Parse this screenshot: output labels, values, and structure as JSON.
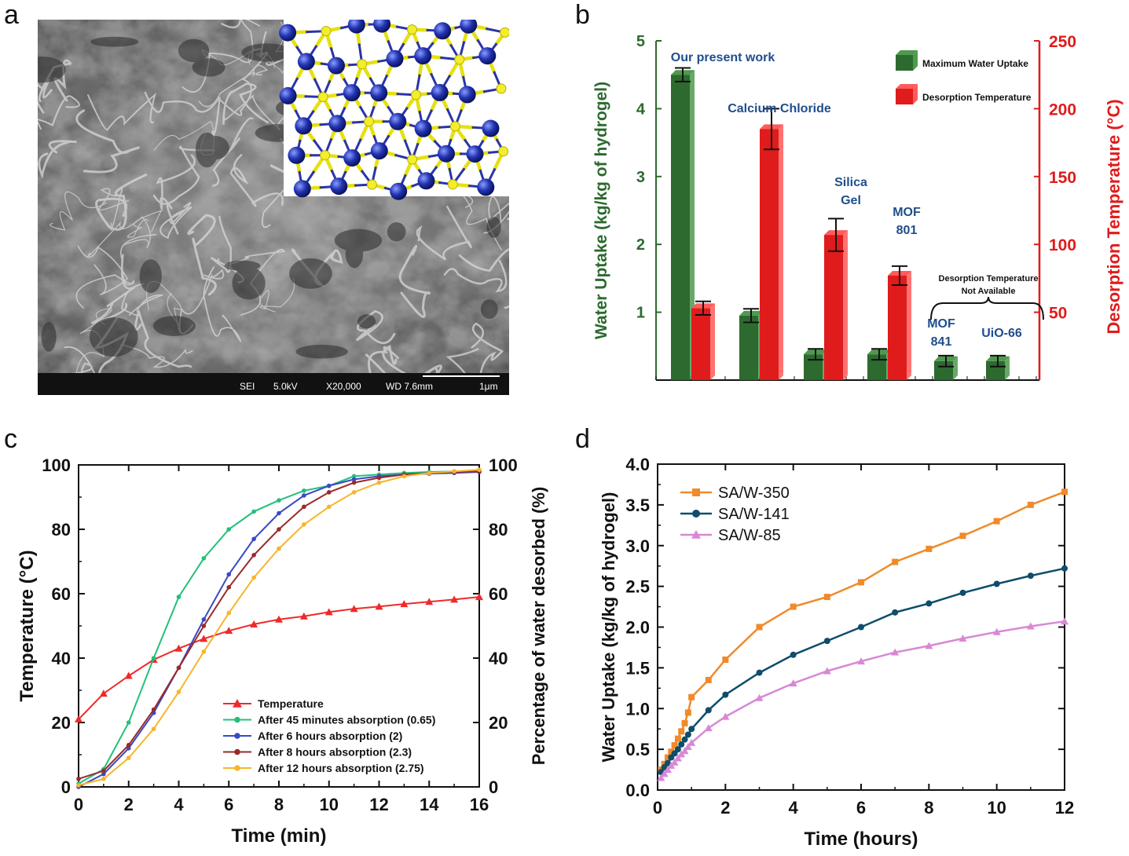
{
  "panels": {
    "a": "a",
    "b": "b",
    "c": "c",
    "d": "d"
  },
  "sem": {
    "scale_bar": "1μm",
    "info": [
      "SEI",
      "5.0kV",
      "X20,000",
      "WD 7.6mm"
    ]
  },
  "chart_data": [
    {
      "type": "bar",
      "panel": "b",
      "categories": [
        "Our present work",
        "Calcium Chloride",
        "Silica Gel",
        "MOF 801",
        "MOF 841",
        "UiO-66"
      ],
      "category_labels": [
        [
          "Our present work"
        ],
        [
          "Calcium Chloride"
        ],
        [
          "Silica",
          "Gel"
        ],
        [
          "MOF",
          "801"
        ],
        [
          "MOF",
          "841"
        ],
        [
          "UiO-66"
        ]
      ],
      "series": [
        {
          "name": "Maximum Water Uptake",
          "axis": "left",
          "color": "#2d6a2f",
          "values": [
            4.5,
            0.95,
            0.38,
            0.38,
            0.28,
            0.28
          ],
          "errors": [
            0.1,
            0.1,
            0.08,
            0.08,
            0.08,
            0.08
          ]
        },
        {
          "name": "Desorption Temperature",
          "axis": "right",
          "color": "#e01b1b",
          "values": [
            53,
            185,
            107,
            77,
            null,
            null
          ],
          "errors": [
            5,
            15,
            12,
            7,
            null,
            null
          ]
        }
      ],
      "ylabel": "Water Uptake (kg/kg of hydrogel)",
      "y2label": "Desorption Temperature (°C)",
      "ylim": [
        0,
        5
      ],
      "y2lim": [
        0,
        250
      ],
      "yticks": [
        1,
        2,
        3,
        4,
        5
      ],
      "y2ticks": [
        50,
        100,
        150,
        200,
        250
      ],
      "annotation": [
        "Desorption Temperature",
        "Not Available"
      ],
      "legend_position": "top-right",
      "colors": {
        "left_axis": "#2d6a2f",
        "right_axis": "#e01b1b",
        "label": "#1f4e8c"
      }
    },
    {
      "type": "line",
      "panel": "c",
      "xlabel": "Time (min)",
      "ylabel": "Temperature (°C)",
      "y2label": "Percentage of water desorbed (%)",
      "xlim": [
        0,
        16
      ],
      "ylim": [
        0,
        100
      ],
      "y2lim": [
        0,
        100
      ],
      "xticks": [
        0,
        2,
        4,
        6,
        8,
        10,
        12,
        14,
        16
      ],
      "yticks": [
        0,
        20,
        40,
        60,
        80,
        100
      ],
      "legend_position": "bottom-right",
      "series": [
        {
          "name": "Temperature",
          "color": "#ee2a2a",
          "marker": "triangle",
          "x": [
            0,
            1,
            2,
            3,
            4,
            5,
            6,
            7,
            8,
            9,
            10,
            11,
            12,
            13,
            14,
            15,
            16
          ],
          "y": [
            21,
            29,
            34.5,
            39.5,
            43,
            46,
            48.5,
            50.5,
            52,
            53,
            54.3,
            55.3,
            56,
            56.8,
            57.5,
            58.2,
            59
          ]
        },
        {
          "name": "After 45 minutes absorption (0.65)",
          "color": "#22c07a",
          "marker": "circle",
          "x": [
            0,
            1,
            2,
            3,
            4,
            5,
            6,
            7,
            8,
            9,
            10,
            11,
            12,
            13,
            14,
            15,
            16
          ],
          "y": [
            1,
            5.5,
            20,
            40,
            59,
            71,
            80,
            85.5,
            89,
            92,
            93.5,
            96.5,
            97,
            97.5,
            97.8,
            98,
            98.2
          ]
        },
        {
          "name": "After 6 hours absorption (2)",
          "color": "#3a49c4",
          "marker": "circle",
          "x": [
            0,
            1,
            2,
            3,
            4,
            5,
            6,
            7,
            8,
            9,
            10,
            11,
            12,
            13,
            14,
            15,
            16
          ],
          "y": [
            0,
            4,
            12,
            23,
            37,
            52,
            66,
            77,
            85,
            90.5,
            93.5,
            95.5,
            96.5,
            97,
            97.3,
            97.5,
            97.8
          ]
        },
        {
          "name": "After 8 hours absorption (2.3)",
          "color": "#9a2a2a",
          "marker": "circle",
          "x": [
            0,
            1,
            2,
            3,
            4,
            5,
            6,
            7,
            8,
            9,
            10,
            11,
            12,
            13,
            14,
            15,
            16
          ],
          "y": [
            2.5,
            5,
            13,
            24,
            37,
            50,
            62,
            72,
            80,
            87,
            91.5,
            94.5,
            96,
            97,
            97.5,
            97.8,
            98
          ]
        },
        {
          "name": "After 12 hours absorption (2.75)",
          "color": "#f7b52a",
          "marker": "circle",
          "x": [
            0,
            1,
            2,
            3,
            4,
            5,
            6,
            7,
            8,
            9,
            10,
            11,
            12,
            13,
            14,
            15,
            16
          ],
          "y": [
            0.5,
            2.5,
            9,
            18,
            29.5,
            42,
            54,
            65,
            74,
            81.5,
            87,
            91.5,
            94.5,
            96.5,
            97.5,
            98,
            98.5
          ]
        }
      ]
    },
    {
      "type": "line",
      "panel": "d",
      "xlabel": "Time (hours)",
      "ylabel": "Water Uptake (kg/kg of hydrogel)",
      "xlim": [
        0,
        12
      ],
      "ylim": [
        0,
        4
      ],
      "xticks": [
        0,
        2,
        4,
        6,
        8,
        10,
        12
      ],
      "yticks": [
        0.0,
        0.5,
        1.0,
        1.5,
        2.0,
        2.5,
        3.0,
        3.5,
        4.0
      ],
      "legend_position": "top-left",
      "series": [
        {
          "name": "SA/W-350",
          "color": "#f08a2a",
          "marker": "square",
          "x": [
            0.1,
            0.2,
            0.3,
            0.4,
            0.5,
            0.6,
            0.7,
            0.8,
            0.9,
            1,
            1.5,
            2,
            3,
            4,
            5,
            6,
            7,
            8,
            9,
            10,
            11,
            12
          ],
          "y": [
            0.25,
            0.32,
            0.4,
            0.47,
            0.55,
            0.63,
            0.72,
            0.82,
            0.95,
            1.14,
            1.35,
            1.6,
            2.0,
            2.25,
            2.37,
            2.55,
            2.8,
            2.96,
            3.12,
            3.3,
            3.5,
            3.66
          ]
        },
        {
          "name": "SA/W-141",
          "color": "#0e4d6b",
          "marker": "circle",
          "x": [
            0.1,
            0.2,
            0.3,
            0.4,
            0.5,
            0.6,
            0.7,
            0.8,
            0.9,
            1,
            1.5,
            2,
            3,
            4,
            5,
            6,
            7,
            8,
            9,
            10,
            11,
            12
          ],
          "y": [
            0.22,
            0.28,
            0.33,
            0.4,
            0.45,
            0.5,
            0.56,
            0.62,
            0.68,
            0.75,
            0.98,
            1.17,
            1.44,
            1.66,
            1.83,
            2.0,
            2.18,
            2.29,
            2.42,
            2.53,
            2.63,
            2.72
          ]
        },
        {
          "name": "SA/W-85",
          "color": "#d888d6",
          "marker": "triangle",
          "x": [
            0.1,
            0.2,
            0.3,
            0.4,
            0.5,
            0.6,
            0.7,
            0.8,
            0.9,
            1,
            1.5,
            2,
            3,
            4,
            5,
            6,
            7,
            8,
            9,
            10,
            11,
            12
          ],
          "y": [
            0.15,
            0.2,
            0.25,
            0.3,
            0.34,
            0.39,
            0.44,
            0.48,
            0.53,
            0.58,
            0.76,
            0.9,
            1.13,
            1.31,
            1.46,
            1.58,
            1.69,
            1.77,
            1.86,
            1.94,
            2.01,
            2.07
          ]
        }
      ]
    }
  ]
}
